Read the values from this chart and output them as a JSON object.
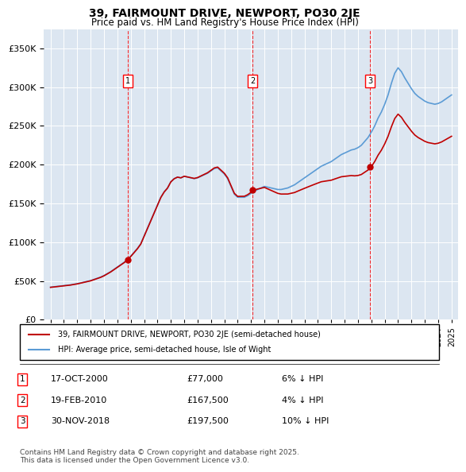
{
  "title1": "39, FAIRMOUNT DRIVE, NEWPORT, PO30 2JE",
  "title2": "Price paid vs. HM Land Registry's House Price Index (HPI)",
  "legend_line1": "39, FAIRMOUNT DRIVE, NEWPORT, PO30 2JE (semi-detached house)",
  "legend_line2": "HPI: Average price, semi-detached house, Isle of Wight",
  "sale1_date": "17-OCT-2000",
  "sale1_price": "£77,000",
  "sale1_hpi": "6% ↓ HPI",
  "sale1_x": 2000.79,
  "sale1_y": 77000,
  "sale2_date": "19-FEB-2010",
  "sale2_price": "£167,500",
  "sale2_hpi": "4% ↓ HPI",
  "sale2_x": 2010.13,
  "sale2_y": 167500,
  "sale3_date": "30-NOV-2018",
  "sale3_price": "£197,500",
  "sale3_hpi": "10% ↓ HPI",
  "sale3_x": 2018.92,
  "sale3_y": 197500,
  "vline1_x": 2000.79,
  "vline2_x": 2010.13,
  "vline3_x": 2018.92,
  "hpi_color": "#5b9bd5",
  "price_color": "#c00000",
  "vline_color": "#ff0000",
  "background_color": "#dce6f1",
  "plot_bg": "#ffffff",
  "ylim": [
    0,
    375000
  ],
  "xlim_start": 1994.5,
  "xlim_end": 2025.5,
  "footer": "Contains HM Land Registry data © Crown copyright and database right 2025.\nThis data is licensed under the Open Government Licence v3.0."
}
